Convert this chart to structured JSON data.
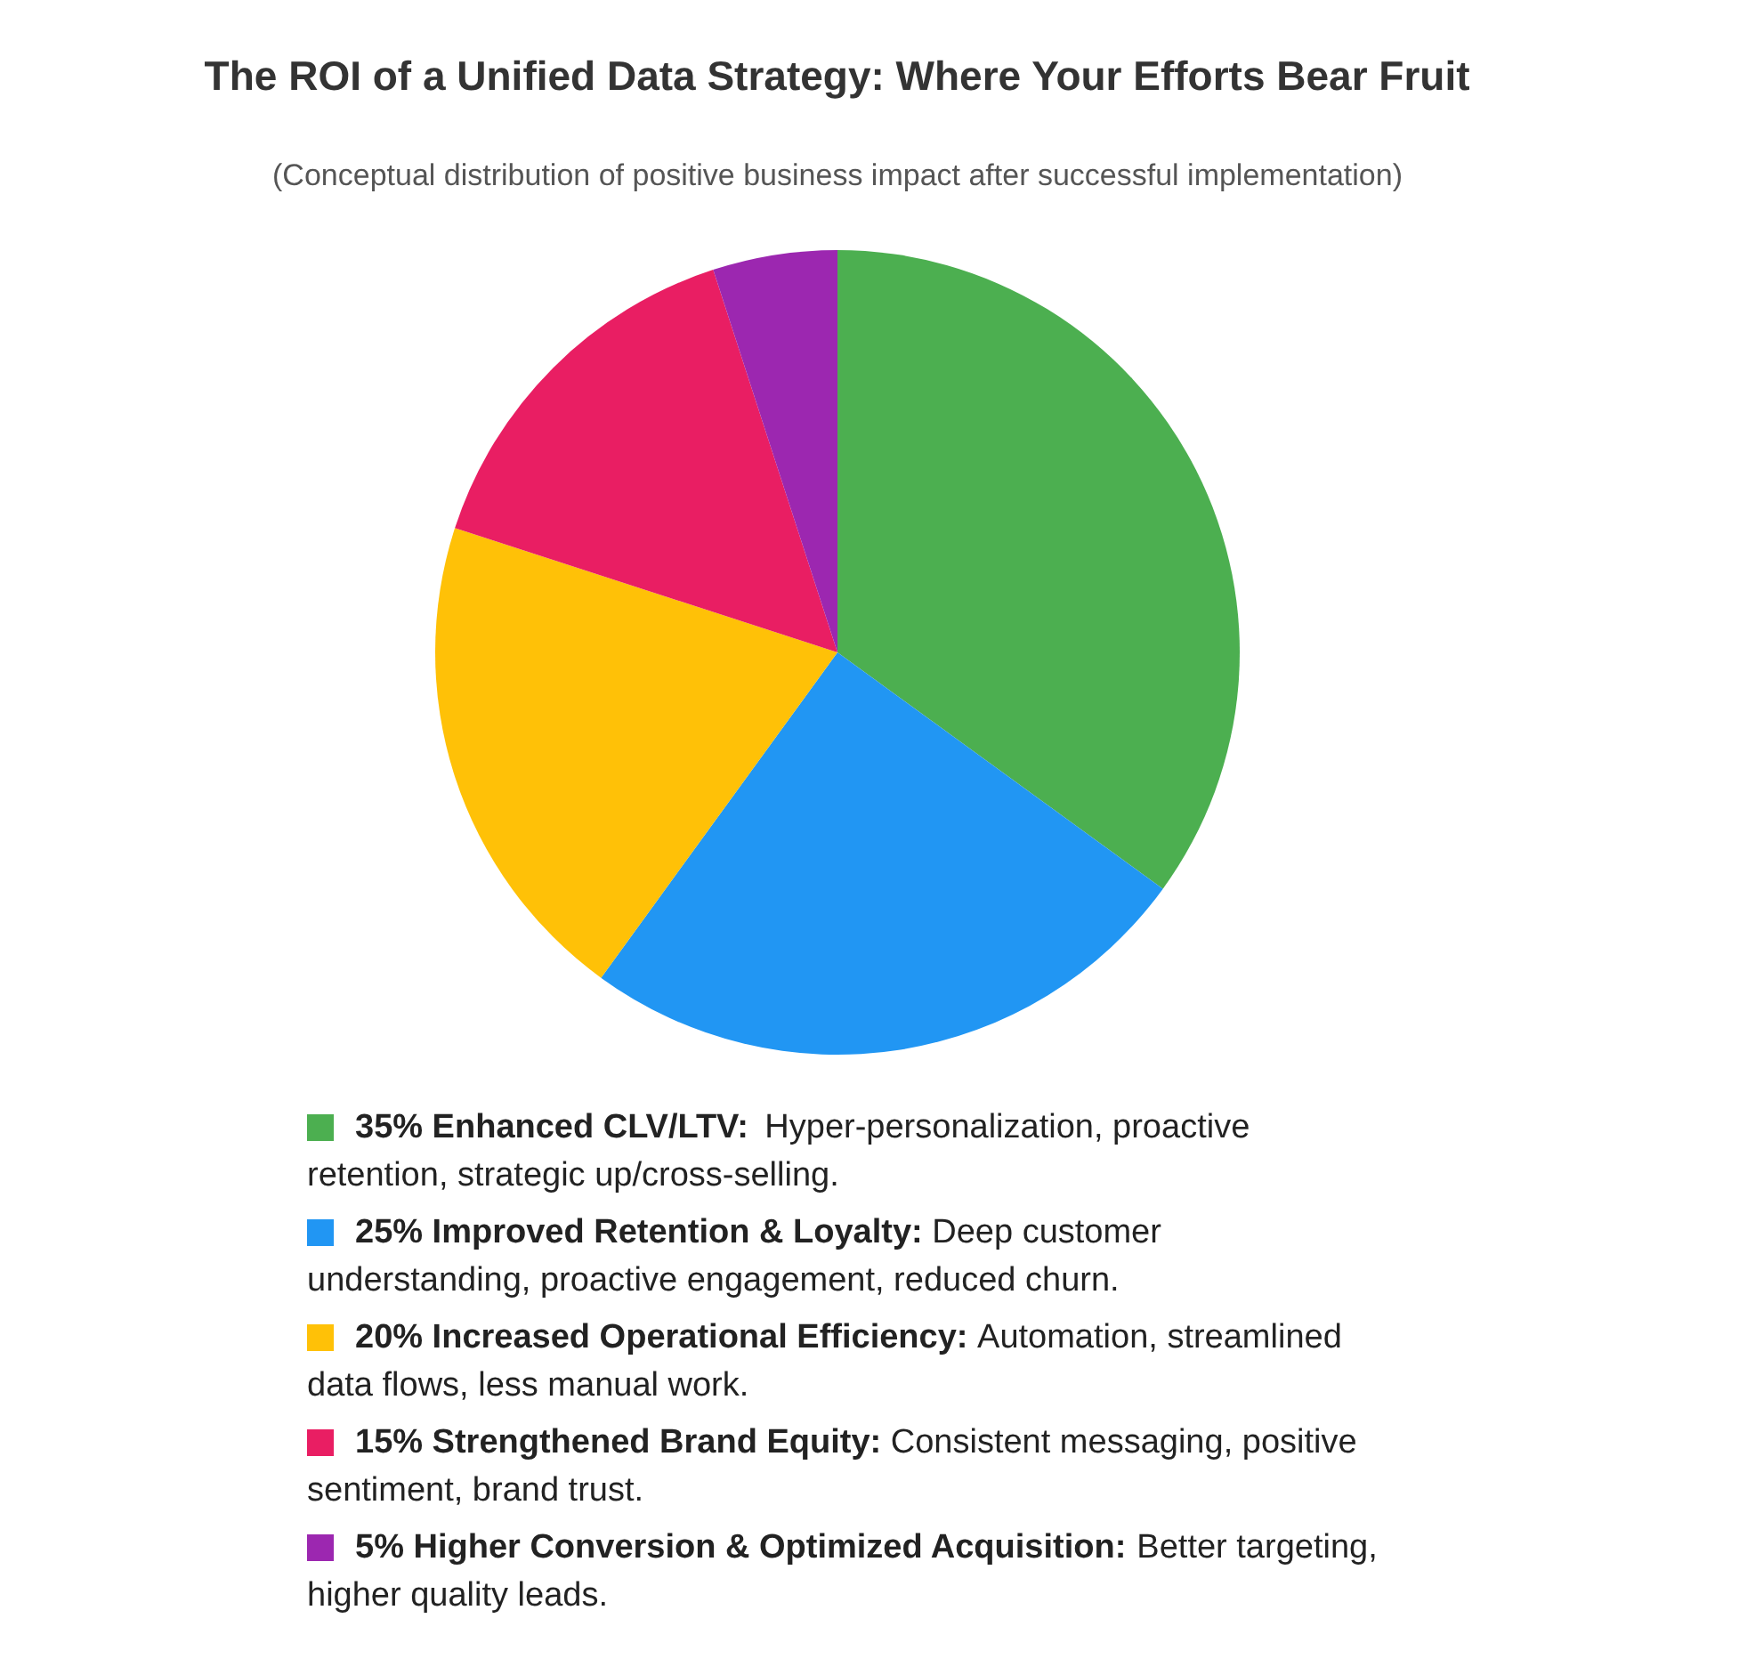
{
  "chart_data": {
    "type": "pie",
    "title": "The ROI of a Unified Data Strategy: Where Your Efforts Bear Fruit",
    "subtitle": "(Conceptual distribution of positive business impact after successful implementation)",
    "categories": [
      "Enhanced CLV/LTV: Hyper-personalization, proactive retention, strategic up/cross-selling.",
      "Improved Retention & Loyalty: Deep customer understanding, proactive engagement, reduced churn.",
      "Increased Operational Efficiency: Automation, streamlined data flows, less manual work.",
      "Strengthened Brand Equity: Consistent messaging, positive sentiment, brand trust.",
      "Higher Conversion & Optimized Acquisition: Better targeting, higher quality leads."
    ],
    "values": [
      35,
      25,
      20,
      15,
      5
    ],
    "colors": [
      "#4caf50",
      "#2196f3",
      "#ffc107",
      "#e91e63",
      "#9c27b0"
    ],
    "value_labels": [
      "35%",
      "25%",
      "20%",
      "15%",
      "5%"
    ],
    "legend": "bottom"
  }
}
